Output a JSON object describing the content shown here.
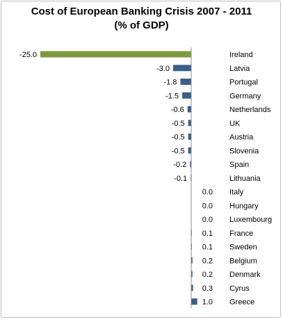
{
  "chart_data": {
    "type": "bar",
    "orientation": "horizontal",
    "title": "Cost of European Banking Crisis 2007 - 2011",
    "subtitle": "(% of GDP)",
    "xlabel": "",
    "ylabel": "",
    "grid": false,
    "legend": "none",
    "categories": [
      "Ireland",
      "Latvia",
      "Portugal",
      "Germany",
      "Netherlands",
      "UK",
      "Austria",
      "Slovenia",
      "Spain",
      "Lithuania",
      "Italy",
      "Hungary",
      "Luxembourg",
      "France",
      "Sweden",
      "Belgium",
      "Denmark",
      "Cyrus",
      "Greece"
    ],
    "values": [
      -25.0,
      -3.0,
      -1.8,
      -1.5,
      -0.6,
      -0.5,
      -0.5,
      -0.5,
      -0.2,
      -0.1,
      0.0,
      0.0,
      0.0,
      0.1,
      0.1,
      0.2,
      0.2,
      0.3,
      1.0
    ],
    "data_labels": [
      "-25.0",
      "-3.0",
      "-1.8",
      "-1.5",
      "-0.6",
      "-0.5",
      "-0.5",
      "-0.5",
      "-0.2",
      "-0.1",
      "0.0",
      "0.0",
      "0.0",
      "0.1",
      "0.1",
      "0.2",
      "0.2",
      "0.3",
      "1.0"
    ],
    "bar_colors": {
      "highlight": "#7f9a3d",
      "default": "#3b5f8c"
    },
    "highlight_category": "Ireland"
  }
}
